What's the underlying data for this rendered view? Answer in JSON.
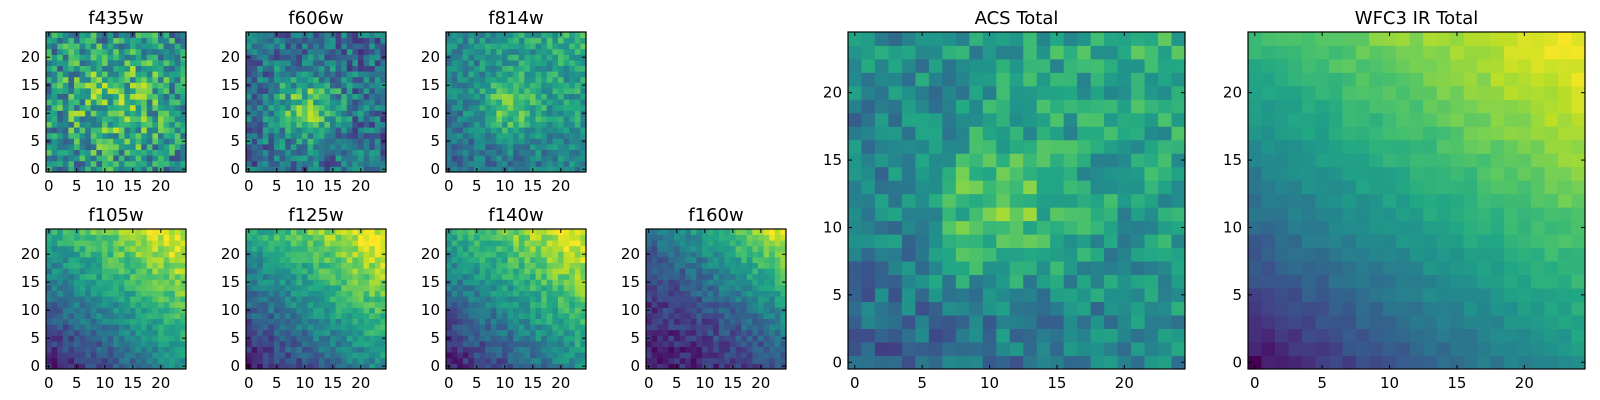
{
  "chart_data": [
    {
      "type": "heatmap",
      "title": "f435w",
      "colormap": "viridis",
      "grid": false,
      "xlim": [
        0,
        25
      ],
      "ylim": [
        0,
        25
      ],
      "xticks": [
        "0",
        "5",
        "10",
        "15",
        "20"
      ],
      "yticks": [
        "0",
        "5",
        "10",
        "15",
        "20"
      ],
      "seed": 11,
      "pattern": "noisy"
    },
    {
      "type": "heatmap",
      "title": "f606w",
      "colormap": "viridis",
      "grid": false,
      "xlim": [
        0,
        25
      ],
      "ylim": [
        0,
        25
      ],
      "xticks": [
        "0",
        "5",
        "10",
        "15",
        "20"
      ],
      "yticks": [
        "0",
        "5",
        "10",
        "15",
        "20"
      ],
      "seed": 23,
      "pattern": "center"
    },
    {
      "type": "heatmap",
      "title": "f814w",
      "colormap": "viridis",
      "grid": false,
      "xlim": [
        0,
        25
      ],
      "ylim": [
        0,
        25
      ],
      "xticks": [
        "0",
        "5",
        "10",
        "15",
        "20"
      ],
      "yticks": [
        "0",
        "5",
        "10",
        "15",
        "20"
      ],
      "seed": 37,
      "pattern": "center-tr"
    },
    {
      "type": "heatmap",
      "title": "f105w",
      "colormap": "viridis",
      "grid": false,
      "xlim": [
        0,
        25
      ],
      "ylim": [
        0,
        25
      ],
      "xticks": [
        "0",
        "5",
        "10",
        "15",
        "20"
      ],
      "yticks": [
        "0",
        "5",
        "10",
        "15",
        "20"
      ],
      "seed": 41,
      "pattern": "ir"
    },
    {
      "type": "heatmap",
      "title": "f125w",
      "colormap": "viridis",
      "grid": false,
      "xlim": [
        0,
        25
      ],
      "ylim": [
        0,
        25
      ],
      "xticks": [
        "0",
        "5",
        "10",
        "15",
        "20"
      ],
      "yticks": [
        "0",
        "5",
        "10",
        "15",
        "20"
      ],
      "seed": 53,
      "pattern": "ir"
    },
    {
      "type": "heatmap",
      "title": "f140w",
      "colormap": "viridis",
      "grid": false,
      "xlim": [
        0,
        25
      ],
      "ylim": [
        0,
        25
      ],
      "xticks": [
        "0",
        "5",
        "10",
        "15",
        "20"
      ],
      "yticks": [
        "0",
        "5",
        "10",
        "15",
        "20"
      ],
      "seed": 67,
      "pattern": "ir"
    },
    {
      "type": "heatmap",
      "title": "f160w",
      "colormap": "viridis",
      "grid": false,
      "xlim": [
        0,
        25
      ],
      "ylim": [
        0,
        25
      ],
      "xticks": [
        "0",
        "5",
        "10",
        "15",
        "20"
      ],
      "yticks": [
        "0",
        "5",
        "10",
        "15",
        "20"
      ],
      "seed": 79,
      "pattern": "ir-dark"
    },
    {
      "type": "heatmap",
      "title": "ACS Total",
      "colormap": "viridis",
      "grid": false,
      "xlim": [
        0,
        25
      ],
      "ylim": [
        0,
        25
      ],
      "xticks": [
        "0",
        "5",
        "10",
        "15",
        "20"
      ],
      "yticks": [
        "0",
        "5",
        "10",
        "15",
        "20"
      ],
      "seed": 97,
      "pattern": "center-tr"
    },
    {
      "type": "heatmap",
      "title": "WFC3 IR Total",
      "colormap": "viridis",
      "grid": false,
      "xlim": [
        0,
        25
      ],
      "ylim": [
        0,
        25
      ],
      "xticks": [
        "0",
        "5",
        "10",
        "15",
        "20"
      ],
      "yticks": [
        "0",
        "5",
        "10",
        "15",
        "20"
      ],
      "seed": 101,
      "pattern": "ir-smooth"
    }
  ]
}
